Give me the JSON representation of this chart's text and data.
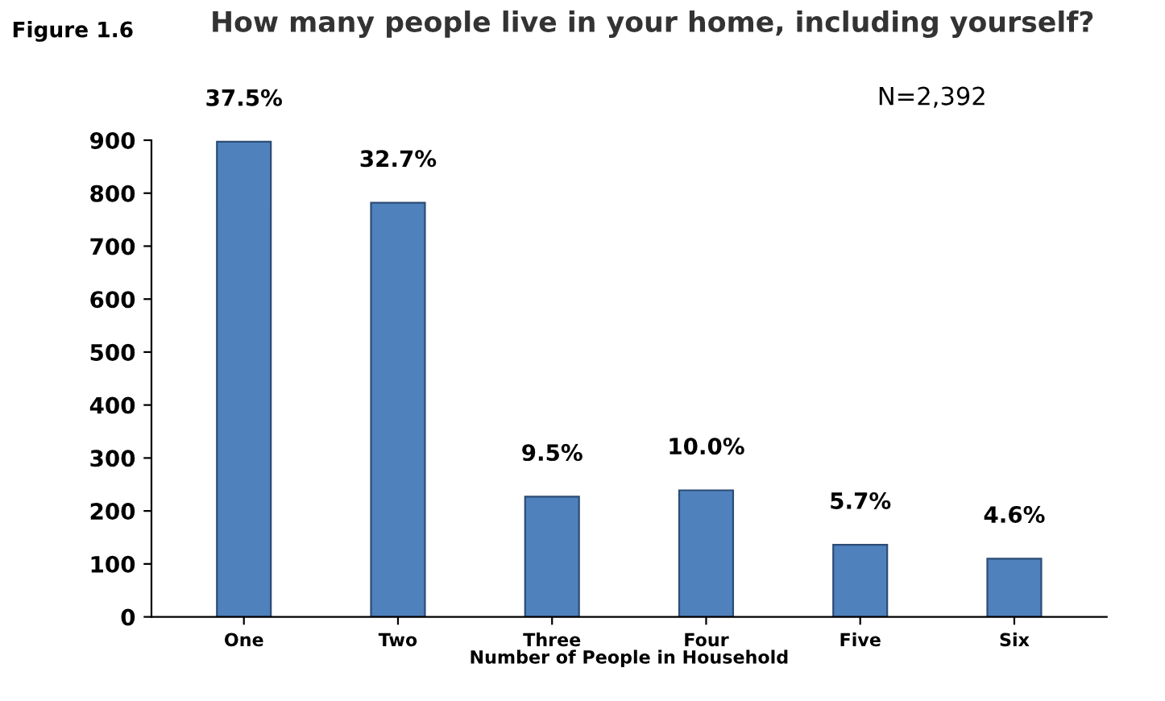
{
  "chart_data": {
    "type": "bar",
    "title": "How many people live in your home, including yourself?",
    "xlabel": "Number of People in Household",
    "annotations": [
      "Figure 1.6",
      "N=2,392",
      {
        "text": "37.5%",
        "x": "One",
        "y": 897
      },
      {
        "text": "32.7%",
        "x": "Two",
        "y": 782
      },
      {
        "text": "9.5%",
        "x": "Three",
        "y": 227
      },
      {
        "text": "10.0%",
        "x": "Four",
        "y": 239
      },
      {
        "text": "5.7%",
        "x": "Five",
        "y": 136
      },
      {
        "text": "4.6%",
        "x": "Six",
        "y": 110
      }
    ],
    "categories": [
      "One",
      "Two",
      "Three",
      "Four",
      "Five",
      "Six"
    ],
    "values": [
      897,
      782,
      227,
      239,
      136,
      110
    ],
    "color": "#4f81bd",
    "ylim": [
      0,
      900
    ],
    "yticks": [
      0,
      100,
      200,
      300,
      400,
      500,
      600,
      700,
      800,
      900
    ],
    "grid": false,
    "legend": false
  }
}
